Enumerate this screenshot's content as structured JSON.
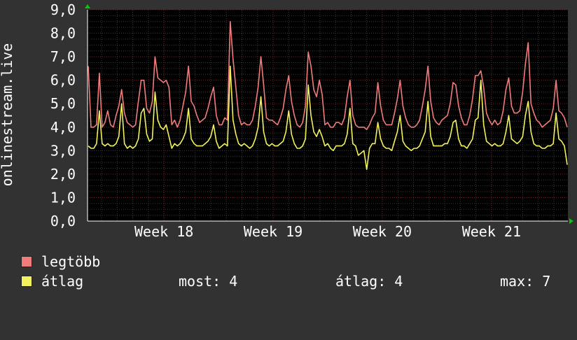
{
  "chart_data": {
    "type": "line",
    "ylabel": "onlinestream.live",
    "ylim": [
      0,
      9
    ],
    "y_ticks": [
      "0,0",
      "1,0",
      "2,0",
      "3,0",
      "4,0",
      "5,0",
      "6,0",
      "7,0",
      "8,0",
      "9,0"
    ],
    "x_range_weeks": [
      17.3,
      21.7
    ],
    "x_ticks": [
      {
        "label": "Week 18",
        "week": 18
      },
      {
        "label": "Week 19",
        "week": 19
      },
      {
        "label": "Week 20",
        "week": 20
      },
      {
        "label": "Week 21",
        "week": 21
      }
    ],
    "grid": true,
    "legend_position": "bottom-left",
    "series": [
      {
        "name": "legtöbb",
        "color": "#f07c7c",
        "values": [
          6.6,
          4.0,
          4.0,
          4.1,
          6.3,
          4.0,
          4.2,
          4.7,
          4.1,
          4.0,
          4.5,
          4.9,
          5.6,
          4.6,
          4.2,
          4.1,
          4.0,
          4.1,
          5.1,
          6.0,
          6.0,
          4.8,
          4.6,
          5.1,
          7.0,
          6.1,
          6.0,
          5.9,
          6.0,
          5.7,
          4.1,
          4.3,
          4.0,
          4.3,
          4.9,
          5.5,
          6.6,
          5.1,
          4.9,
          4.5,
          4.2,
          4.3,
          4.4,
          4.8,
          5.3,
          5.7,
          4.5,
          4.1,
          4.1,
          4.4,
          4.3,
          8.5,
          6.9,
          5.7,
          4.5,
          4.1,
          4.2,
          4.1,
          4.1,
          4.3,
          4.9,
          5.7,
          7.0,
          5.8,
          4.4,
          4.3,
          4.3,
          4.2,
          4.1,
          4.4,
          4.8,
          5.6,
          6.2,
          5.1,
          4.5,
          4.1,
          4.0,
          4.2,
          4.9,
          7.2,
          6.6,
          5.6,
          5.3,
          6.0,
          5.4,
          4.1,
          4.2,
          4.0,
          4.0,
          4.2,
          4.2,
          4.1,
          4.4,
          5.3,
          6.0,
          4.5,
          4.1,
          4.0,
          4.0,
          4.0,
          3.9,
          4.1,
          4.4,
          4.6,
          5.9,
          4.9,
          4.3,
          4.1,
          4.1,
          4.1,
          4.6,
          5.2,
          6.0,
          4.9,
          4.4,
          4.1,
          4.0,
          4.0,
          4.1,
          4.3,
          4.9,
          5.6,
          6.6,
          5.1,
          4.4,
          4.2,
          4.1,
          4.3,
          4.4,
          4.5,
          5.0,
          5.9,
          5.8,
          4.9,
          4.4,
          4.1,
          4.1,
          4.5,
          5.2,
          6.2,
          6.2,
          6.4,
          5.7,
          4.6,
          4.3,
          4.1,
          4.3,
          4.1,
          4.2,
          4.7,
          5.6,
          6.1,
          4.9,
          4.6,
          4.6,
          4.7,
          5.5,
          6.7,
          7.6,
          5.0,
          4.6,
          4.3,
          4.2,
          4.0,
          4.1,
          4.2,
          4.3,
          4.8,
          6.0,
          4.7,
          4.6,
          4.4,
          4.0
        ]
      },
      {
        "name": "átlag",
        "color": "#f2f25f",
        "values": [
          3.2,
          3.1,
          3.1,
          3.3,
          4.7,
          3.3,
          3.2,
          3.3,
          3.2,
          3.2,
          3.3,
          3.6,
          5.0,
          3.3,
          3.1,
          3.2,
          3.1,
          3.2,
          3.5,
          4.6,
          4.8,
          3.7,
          3.4,
          3.5,
          5.5,
          4.3,
          4.0,
          3.9,
          4.1,
          3.6,
          3.1,
          3.3,
          3.2,
          3.3,
          3.5,
          3.8,
          4.8,
          3.5,
          3.3,
          3.2,
          3.2,
          3.2,
          3.3,
          3.4,
          3.6,
          4.1,
          3.4,
          3.1,
          3.2,
          3.3,
          3.2,
          6.6,
          4.3,
          3.7,
          3.3,
          3.2,
          3.3,
          3.2,
          3.1,
          3.2,
          3.5,
          4.0,
          5.3,
          3.8,
          3.3,
          3.2,
          3.3,
          3.2,
          3.2,
          3.3,
          3.4,
          3.8,
          4.7,
          3.7,
          3.3,
          3.1,
          3.1,
          3.2,
          3.5,
          5.8,
          4.5,
          3.8,
          3.6,
          3.9,
          3.6,
          3.2,
          3.3,
          3.1,
          3.0,
          3.2,
          3.2,
          3.2,
          3.3,
          3.7,
          4.8,
          3.3,
          3.2,
          2.8,
          2.9,
          3.0,
          2.2,
          3.1,
          3.3,
          3.3,
          4.2,
          3.5,
          3.2,
          3.1,
          3.1,
          3.0,
          3.4,
          3.8,
          4.5,
          3.4,
          3.2,
          3.1,
          3.0,
          3.1,
          3.1,
          3.2,
          3.5,
          3.8,
          5.1,
          3.6,
          3.2,
          3.2,
          3.2,
          3.2,
          3.3,
          3.3,
          3.6,
          4.2,
          4.3,
          3.5,
          3.2,
          3.2,
          3.1,
          3.3,
          3.5,
          4.3,
          4.4,
          6.0,
          4.1,
          3.4,
          3.3,
          3.2,
          3.3,
          3.2,
          3.2,
          3.3,
          3.8,
          4.5,
          3.5,
          3.4,
          3.3,
          3.4,
          3.6,
          4.5,
          5.1,
          3.8,
          3.3,
          3.2,
          3.2,
          3.1,
          3.1,
          3.2,
          3.2,
          3.3,
          4.6,
          3.5,
          3.4,
          3.2,
          2.4
        ]
      }
    ]
  },
  "legend": {
    "items": [
      {
        "label": "legtöbb",
        "color": "#f07c7c"
      },
      {
        "label": "átlag",
        "color": "#f2f25f"
      }
    ],
    "stats": {
      "most": "most: 4",
      "atlag": "átlag: 4",
      "max": "max: 7"
    }
  }
}
